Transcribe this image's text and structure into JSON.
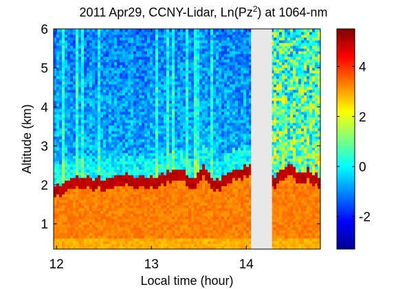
{
  "chart_data": {
    "type": "heatmap",
    "title": {
      "prefix": "2011 Apr29, CCNY-Lidar, Ln(Pz",
      "superscript": "2",
      "suffix": ") at 1064-nm"
    },
    "xlabel": "Local time (hour)",
    "ylabel": "Altitude (km)",
    "xlim": [
      11.97,
      14.78
    ],
    "ylim": [
      0.35,
      6.0
    ],
    "x_ticks": [
      12,
      13,
      14
    ],
    "x_tick_labels": [
      "12",
      "13",
      "14"
    ],
    "y_ticks": [
      1,
      2,
      3,
      4,
      5,
      6
    ],
    "y_tick_labels": [
      "1",
      "2",
      "3",
      "4",
      "5",
      "6"
    ],
    "colorbar": {
      "range": [
        -3.3,
        5.5
      ],
      "ticks": [
        -2,
        0,
        2,
        4
      ],
      "tick_labels": [
        "-2",
        "0",
        "2",
        "4"
      ],
      "colormap": "jet"
    },
    "no_data_interval": {
      "start": 14.05,
      "end": 14.27
    },
    "field_summary": {
      "boundary_layer_value": 3.3,
      "boundary_layer_top_value": 5.0,
      "free_troposphere_value": -0.8,
      "noisy_segment_value": 1.0,
      "note_label": ""
    },
    "boundary_layer_top_km": {
      "times": [
        11.98,
        12.05,
        12.15,
        12.25,
        12.35,
        12.45,
        12.55,
        12.65,
        12.75,
        12.85,
        12.95,
        13.05,
        13.15,
        13.25,
        13.35,
        13.45,
        13.55,
        13.65,
        13.75,
        13.85,
        13.95,
        14.05,
        14.27,
        14.35,
        14.45,
        14.55,
        14.65,
        14.78
      ],
      "heights": [
        1.9,
        1.88,
        2.05,
        2.12,
        2.08,
        2.1,
        2.05,
        2.12,
        2.15,
        2.1,
        2.12,
        2.1,
        2.2,
        2.28,
        2.25,
        2.05,
        2.4,
        2.05,
        2.1,
        2.3,
        2.35,
        2.45,
        2.1,
        2.2,
        2.45,
        2.2,
        2.3,
        2.1
      ]
    }
  }
}
